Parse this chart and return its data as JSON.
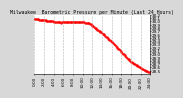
{
  "title": "Milwaukee  Barometric Pressure per Minute (Last 24 Hours)",
  "bg_color": "#d8d8d8",
  "plot_bg_color": "#ffffff",
  "line_color": "#ff0000",
  "grid_color": "#aaaaaa",
  "ylim": [
    28.4,
    30.2
  ],
  "yticks": [
    28.5,
    28.6,
    28.7,
    28.8,
    28.9,
    29.0,
    29.1,
    29.2,
    29.3,
    29.4,
    29.5,
    29.6,
    29.7,
    29.8,
    29.9,
    30.0,
    30.1,
    30.2
  ],
  "ylabel_fontsize": 3.0,
  "title_fontsize": 3.5,
  "x_points": [
    0,
    1,
    2,
    3,
    4,
    5,
    6,
    7,
    8,
    9,
    10,
    11,
    12,
    13,
    14,
    15,
    16,
    17,
    18,
    19,
    20,
    21,
    22,
    23,
    24,
    25,
    26,
    27,
    28,
    29,
    30,
    31,
    32,
    33,
    34,
    35,
    36,
    37,
    38,
    39,
    40,
    41,
    42,
    43,
    44,
    45,
    46,
    47,
    48,
    49,
    50,
    51,
    52,
    53,
    54,
    55,
    56,
    57,
    58,
    59,
    60,
    61,
    62,
    63,
    64,
    65,
    66,
    67,
    68,
    69,
    70,
    71,
    72,
    73,
    74,
    75,
    76,
    77,
    78,
    79,
    80,
    81,
    82,
    83,
    84,
    85,
    86,
    87,
    88,
    89,
    90,
    91,
    92,
    93,
    94,
    95,
    96,
    97,
    98,
    99,
    100,
    101,
    102,
    103,
    104,
    105,
    106,
    107,
    108,
    109,
    110,
    111,
    112,
    113,
    114,
    115,
    116,
    117,
    118,
    119,
    120,
    121,
    122,
    123,
    124,
    125,
    126,
    127,
    128,
    129,
    130,
    131,
    132,
    133,
    134,
    135,
    136,
    137,
    138,
    139,
    140,
    141,
    142,
    143
  ],
  "y_points": [
    30.07,
    30.07,
    30.07,
    30.06,
    30.06,
    30.06,
    30.05,
    30.05,
    30.05,
    30.04,
    30.04,
    30.04,
    30.03,
    30.03,
    30.03,
    30.02,
    30.02,
    30.02,
    30.01,
    30.01,
    30.01,
    30.0,
    30.0,
    30.0,
    29.99,
    29.99,
    29.99,
    29.99,
    29.99,
    29.98,
    29.98,
    29.97,
    29.97,
    29.96,
    29.97,
    29.97,
    29.97,
    29.97,
    29.97,
    29.97,
    29.97,
    29.97,
    29.97,
    29.97,
    29.97,
    29.97,
    29.97,
    29.97,
    29.97,
    29.97,
    29.97,
    29.97,
    29.97,
    29.97,
    29.97,
    29.97,
    29.98,
    29.98,
    29.98,
    29.97,
    29.97,
    29.97,
    29.97,
    29.96,
    29.96,
    29.96,
    29.95,
    29.95,
    29.94,
    29.93,
    29.91,
    29.89,
    29.87,
    29.86,
    29.84,
    29.81,
    29.79,
    29.77,
    29.74,
    29.73,
    29.72,
    29.71,
    29.69,
    29.67,
    29.65,
    29.63,
    29.61,
    29.58,
    29.56,
    29.54,
    29.52,
    29.5,
    29.47,
    29.45,
    29.43,
    29.41,
    29.38,
    29.36,
    29.33,
    29.31,
    29.28,
    29.25,
    29.22,
    29.2,
    29.17,
    29.15,
    29.12,
    29.1,
    29.07,
    29.05,
    29.02,
    29.0,
    28.97,
    28.95,
    28.92,
    28.9,
    28.87,
    28.85,
    28.82,
    28.8,
    28.78,
    28.76,
    28.74,
    28.73,
    28.71,
    28.7,
    28.68,
    28.67,
    28.65,
    28.64,
    28.62,
    28.61,
    28.59,
    28.58,
    28.56,
    28.55,
    28.53,
    28.52,
    28.5,
    28.49,
    28.48,
    28.47,
    28.46,
    28.46
  ],
  "xtick_positions": [
    0,
    12,
    24,
    36,
    48,
    60,
    72,
    84,
    96,
    108,
    120,
    132,
    143
  ],
  "xtick_labels": [
    "0:00",
    "2:00",
    "4:00",
    "6:00",
    "8:00",
    "10:00",
    "12:00",
    "14:00",
    "16:00",
    "18:00",
    "20:00",
    "22:00",
    "24:00"
  ],
  "marker_size": 0.6,
  "linewidth": 0
}
